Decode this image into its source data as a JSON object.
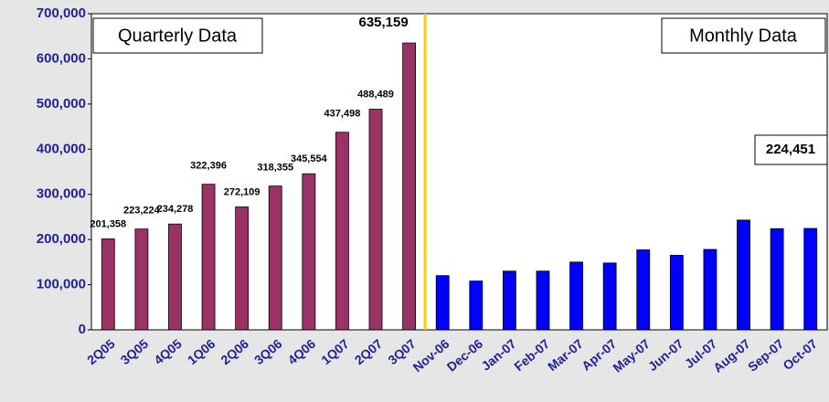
{
  "chart_data": {
    "type": "bar",
    "categories": [
      "2Q05",
      "3Q05",
      "4Q05",
      "1Q06",
      "2Q06",
      "3Q06",
      "4Q06",
      "1Q07",
      "2Q07",
      "3Q07",
      "Nov-06",
      "Dec-06",
      "Jan-07",
      "Feb-07",
      "Mar-07",
      "Apr-07",
      "May-07",
      "Jun-07",
      "Jul-07",
      "Aug-07",
      "Sep-07",
      "Oct-07"
    ],
    "series": [
      {
        "name": "Quarterly Data",
        "color": "#993366",
        "values": [
          201358,
          223224,
          234278,
          322396,
          272109,
          318355,
          345554,
          437498,
          488489,
          635159,
          null,
          null,
          null,
          null,
          null,
          null,
          null,
          null,
          null,
          null,
          null,
          null
        ],
        "value_labels": [
          "201,358",
          "223,224",
          "234,278",
          "322,396",
          "272,109",
          "318,355",
          "345,554",
          "437,498",
          "488,489",
          "635,159",
          null,
          null,
          null,
          null,
          null,
          null,
          null,
          null,
          null,
          null,
          null,
          null
        ]
      },
      {
        "name": "Monthly Data",
        "color": "#0000ff",
        "values": [
          null,
          null,
          null,
          null,
          null,
          null,
          null,
          null,
          null,
          null,
          120000,
          108000,
          130000,
          130000,
          150000,
          148000,
          177000,
          165000,
          178000,
          243000,
          224000,
          224451
        ],
        "value_labels": [
          null,
          null,
          null,
          null,
          null,
          null,
          null,
          null,
          null,
          null,
          null,
          null,
          null,
          null,
          null,
          null,
          null,
          null,
          null,
          null,
          null,
          "224,451"
        ]
      }
    ],
    "ylim": [
      0,
      700000
    ],
    "yticks": [
      0,
      {
        "value": 100000,
        "label": "100,000"
      },
      {
        "value": 200000,
        "label": "200,000"
      },
      {
        "value": 300000,
        "label": "300,000"
      },
      {
        "value": 400000,
        "label": "400,000"
      },
      {
        "value": 500000,
        "label": "500,000"
      },
      {
        "value": 600000,
        "label": "600,000"
      },
      {
        "value": 700000,
        "label": "700,000"
      }
    ],
    "grid": false
  }
}
